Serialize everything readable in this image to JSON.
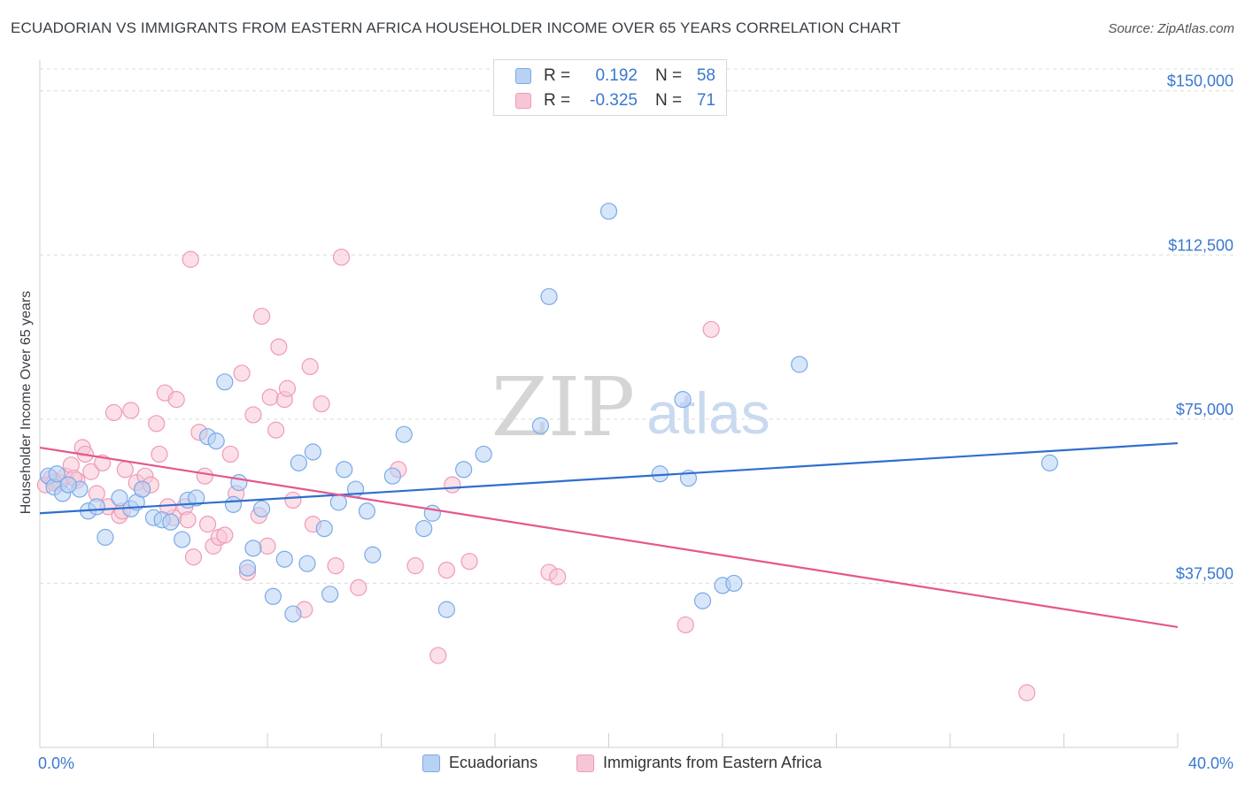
{
  "header": {
    "title": "ECUADORIAN VS IMMIGRANTS FROM EASTERN AFRICA HOUSEHOLDER INCOME OVER 65 YEARS CORRELATION CHART",
    "source": "Source: ZipAtlas.com"
  },
  "legend_top": {
    "rows": [
      {
        "r_label": "R =",
        "r_value": "0.192",
        "n_label": "N =",
        "n_value": "58"
      },
      {
        "r_label": "R =",
        "r_value": "-0.325",
        "n_label": "N =",
        "n_value": "71"
      }
    ]
  },
  "watermark": {
    "zip": "ZIP",
    "atlas": "atlas"
  },
  "chart_data": {
    "type": "scatter",
    "title": "ECUADORIAN VS IMMIGRANTS FROM EASTERN AFRICA HOUSEHOLDER INCOME OVER 65 YEARS CORRELATION CHART",
    "xlabel": "",
    "ylabel": "Householder Income Over 65 years",
    "xlim": [
      0,
      40
    ],
    "ylim": [
      0,
      155000
    ],
    "x_tick_labels": [
      "0.0%",
      "40.0%"
    ],
    "y_ticks": [
      37500,
      75000,
      112500,
      150000
    ],
    "y_tick_labels": [
      "$37,500",
      "$75,000",
      "$112,500",
      "$150,000"
    ],
    "grid": "horizontal dashed",
    "legend_position": "bottom",
    "series": [
      {
        "name": "Ecuadorians",
        "color": "#7aaae8",
        "fill": "#b8d2f4",
        "trend": {
          "x": [
            0,
            40
          ],
          "y": [
            53500,
            69500
          ]
        },
        "points": [
          [
            0.3,
            62000
          ],
          [
            0.5,
            59500
          ],
          [
            0.8,
            58000
          ],
          [
            1.4,
            59000
          ],
          [
            1.7,
            54000
          ],
          [
            2.0,
            55000
          ],
          [
            2.3,
            48000
          ],
          [
            2.8,
            57000
          ],
          [
            3.2,
            54500
          ],
          [
            3.4,
            56000
          ],
          [
            3.6,
            59000
          ],
          [
            4.0,
            52500
          ],
          [
            4.3,
            52000
          ],
          [
            4.6,
            51500
          ],
          [
            5.0,
            47500
          ],
          [
            5.2,
            56500
          ],
          [
            5.5,
            57000
          ],
          [
            5.9,
            71000
          ],
          [
            6.2,
            70000
          ],
          [
            6.5,
            83500
          ],
          [
            6.8,
            55500
          ],
          [
            7.0,
            60500
          ],
          [
            7.3,
            41000
          ],
          [
            7.5,
            45500
          ],
          [
            7.8,
            54500
          ],
          [
            8.2,
            34500
          ],
          [
            8.6,
            43000
          ],
          [
            8.9,
            30500
          ],
          [
            9.1,
            65000
          ],
          [
            9.4,
            42000
          ],
          [
            9.6,
            67500
          ],
          [
            10.0,
            50000
          ],
          [
            10.2,
            35000
          ],
          [
            10.5,
            56000
          ],
          [
            10.7,
            63500
          ],
          [
            11.1,
            59000
          ],
          [
            11.5,
            54000
          ],
          [
            11.7,
            44000
          ],
          [
            12.4,
            62000
          ],
          [
            12.8,
            71500
          ],
          [
            13.5,
            50000
          ],
          [
            13.8,
            53500
          ],
          [
            14.3,
            31500
          ],
          [
            14.9,
            63500
          ],
          [
            15.6,
            67000
          ],
          [
            17.6,
            73500
          ],
          [
            17.9,
            103000
          ],
          [
            20.0,
            122500
          ],
          [
            21.8,
            62500
          ],
          [
            22.6,
            79500
          ],
          [
            22.8,
            61500
          ],
          [
            23.3,
            33500
          ],
          [
            24.0,
            37000
          ],
          [
            24.4,
            37500
          ],
          [
            26.7,
            87500
          ],
          [
            35.5,
            65000
          ],
          [
            0.6,
            62500
          ],
          [
            1.0,
            60000
          ]
        ]
      },
      {
        "name": "Immigrants from Eastern Africa",
        "color": "#f09ab8",
        "fill": "#f7c6d6",
        "trend": {
          "x": [
            0,
            40
          ],
          "y": [
            68500,
            27500
          ]
        },
        "points": [
          [
            0.2,
            60000
          ],
          [
            0.4,
            61500
          ],
          [
            0.7,
            60500
          ],
          [
            0.9,
            62000
          ],
          [
            1.1,
            64500
          ],
          [
            1.3,
            61000
          ],
          [
            1.5,
            68500
          ],
          [
            1.6,
            67000
          ],
          [
            1.8,
            63000
          ],
          [
            2.0,
            58000
          ],
          [
            2.2,
            65000
          ],
          [
            2.4,
            55000
          ],
          [
            2.6,
            76500
          ],
          [
            2.8,
            53000
          ],
          [
            3.0,
            63500
          ],
          [
            3.2,
            77000
          ],
          [
            3.4,
            60500
          ],
          [
            3.6,
            59000
          ],
          [
            3.7,
            62000
          ],
          [
            3.9,
            60000
          ],
          [
            4.1,
            74000
          ],
          [
            4.2,
            67000
          ],
          [
            4.4,
            81000
          ],
          [
            4.7,
            52500
          ],
          [
            4.8,
            79500
          ],
          [
            5.1,
            55000
          ],
          [
            5.2,
            52000
          ],
          [
            5.4,
            43500
          ],
          [
            5.3,
            111500
          ],
          [
            5.6,
            72000
          ],
          [
            5.8,
            62000
          ],
          [
            5.9,
            51000
          ],
          [
            6.1,
            46000
          ],
          [
            6.3,
            48000
          ],
          [
            6.5,
            48500
          ],
          [
            6.7,
            67000
          ],
          [
            6.9,
            58000
          ],
          [
            7.1,
            85500
          ],
          [
            7.3,
            40000
          ],
          [
            7.5,
            76000
          ],
          [
            7.7,
            53000
          ],
          [
            7.8,
            98500
          ],
          [
            8.0,
            46000
          ],
          [
            8.1,
            80000
          ],
          [
            8.3,
            72500
          ],
          [
            8.4,
            91500
          ],
          [
            8.6,
            79500
          ],
          [
            8.7,
            82000
          ],
          [
            8.9,
            56500
          ],
          [
            9.3,
            31500
          ],
          [
            9.5,
            87000
          ],
          [
            9.6,
            51000
          ],
          [
            9.9,
            78500
          ],
          [
            10.4,
            41500
          ],
          [
            10.6,
            112000
          ],
          [
            11.2,
            36500
          ],
          [
            12.6,
            63500
          ],
          [
            13.2,
            41500
          ],
          [
            14.0,
            21000
          ],
          [
            14.3,
            40500
          ],
          [
            14.5,
            60000
          ],
          [
            15.1,
            42500
          ],
          [
            17.9,
            40000
          ],
          [
            18.2,
            39000
          ],
          [
            22.7,
            28000
          ],
          [
            23.6,
            95500
          ],
          [
            34.7,
            12500
          ],
          [
            0.5,
            60500
          ],
          [
            1.2,
            61500
          ],
          [
            2.9,
            54000
          ],
          [
            4.5,
            55000
          ]
        ]
      }
    ]
  }
}
